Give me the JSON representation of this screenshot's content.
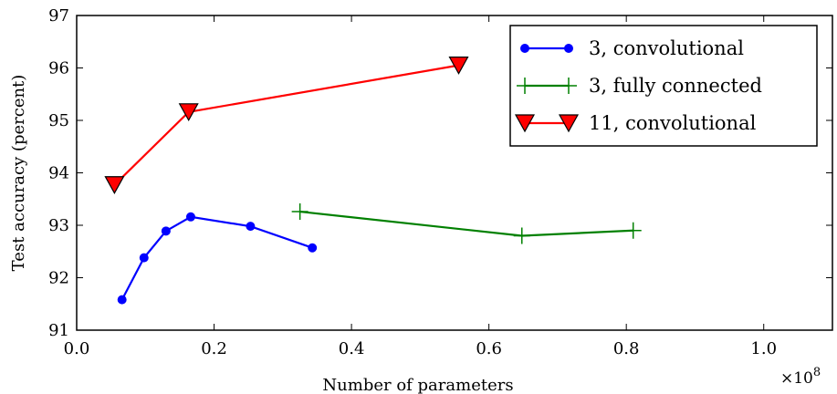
{
  "chart_data": {
    "type": "line",
    "xlabel": "Number of parameters",
    "ylabel": "Test accuracy (percent)",
    "x_multiplier_label": "×10",
    "x_multiplier_exponent": "8",
    "xlim": [
      0.0,
      1.1
    ],
    "ylim": [
      91,
      97
    ],
    "x_ticks": [
      0.0,
      0.2,
      0.4,
      0.6,
      0.8,
      1.0
    ],
    "x_tick_labels": [
      "0.0",
      "0.2",
      "0.4",
      "0.6",
      "0.8",
      "1.0"
    ],
    "y_ticks": [
      91,
      92,
      93,
      94,
      95,
      96,
      97
    ],
    "y_tick_labels": [
      "91",
      "92",
      "93",
      "94",
      "95",
      "96",
      "97"
    ],
    "grid": false,
    "legend_position": "top-right",
    "series": [
      {
        "name": "3, convolutional",
        "color": "#0000ff",
        "marker": "circle",
        "x": [
          0.066,
          0.098,
          0.13,
          0.166,
          0.253,
          0.343
        ],
        "y": [
          91.58,
          92.38,
          92.89,
          93.16,
          92.98,
          92.57
        ]
      },
      {
        "name": "3, fully connected",
        "color": "#008000",
        "marker": "plus",
        "x": [
          0.325,
          0.648,
          0.81
        ],
        "y": [
          93.26,
          92.8,
          92.9
        ]
      },
      {
        "name": "11, convolutional",
        "color": "#ff0000",
        "marker": "triangle-down",
        "x": [
          0.055,
          0.163,
          0.556
        ],
        "y": [
          93.77,
          95.16,
          96.05
        ]
      }
    ]
  }
}
